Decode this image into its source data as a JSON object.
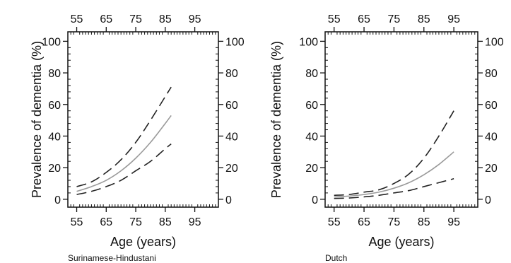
{
  "chart_data": [
    {
      "type": "line",
      "title": "",
      "caption": "Surinamese-Hindustani",
      "xlabel": "Age (years)",
      "ylabel": "Prevalence of dementia (%)",
      "xlim": [
        52,
        103
      ],
      "ylim": [
        -5,
        106
      ],
      "xticks": [
        55,
        65,
        75,
        85,
        95
      ],
      "yticks": [
        0,
        20,
        40,
        60,
        80,
        100
      ],
      "x_minor_step": 1,
      "y_minor_step": 4,
      "grid": false,
      "series": [
        {
          "role": "estimate",
          "color": "#9a9a9a",
          "dash": "solid",
          "x": [
            55,
            60,
            65,
            70,
            75,
            80,
            85,
            87
          ],
          "y": [
            5,
            8,
            12,
            18,
            26,
            36,
            48,
            53
          ]
        },
        {
          "role": "upper-ci",
          "color": "#222222",
          "dash": "dashed",
          "x": [
            55,
            60,
            65,
            70,
            75,
            80,
            85,
            87
          ],
          "y": [
            8,
            11,
            17,
            25,
            36,
            50,
            65,
            71
          ]
        },
        {
          "role": "lower-ci",
          "color": "#222222",
          "dash": "dashed",
          "x": [
            55,
            60,
            65,
            70,
            75,
            80,
            85,
            87
          ],
          "y": [
            3,
            5,
            8,
            12,
            18,
            24,
            32,
            35
          ]
        }
      ]
    },
    {
      "type": "line",
      "title": "",
      "caption": "Dutch",
      "xlabel": "Age (years)",
      "ylabel": "Prevalence of dementia (%)",
      "xlim": [
        52,
        103
      ],
      "ylim": [
        -5,
        106
      ],
      "xticks": [
        55,
        65,
        75,
        85,
        95
      ],
      "yticks": [
        0,
        20,
        40,
        60,
        80,
        100
      ],
      "x_minor_step": 1,
      "y_minor_step": 4,
      "grid": false,
      "series": [
        {
          "role": "estimate",
          "color": "#9a9a9a",
          "dash": "solid",
          "x": [
            55,
            60,
            65,
            70,
            75,
            80,
            85,
            90,
            95
          ],
          "y": [
            1.5,
            2,
            3,
            4.5,
            7,
            10.5,
            15.5,
            22,
            30
          ]
        },
        {
          "role": "upper-ci",
          "color": "#222222",
          "dash": "dashed",
          "x": [
            55,
            60,
            65,
            70,
            75,
            80,
            85,
            90,
            95
          ],
          "y": [
            2.5,
            3,
            4.5,
            6,
            10,
            16,
            26,
            40,
            56
          ]
        },
        {
          "role": "lower-ci",
          "color": "#222222",
          "dash": "dashed",
          "x": [
            55,
            60,
            65,
            70,
            75,
            80,
            85,
            90,
            95
          ],
          "y": [
            0.5,
            0.8,
            1.5,
            2.5,
            4,
            5.5,
            8,
            10.5,
            13
          ]
        }
      ]
    }
  ]
}
